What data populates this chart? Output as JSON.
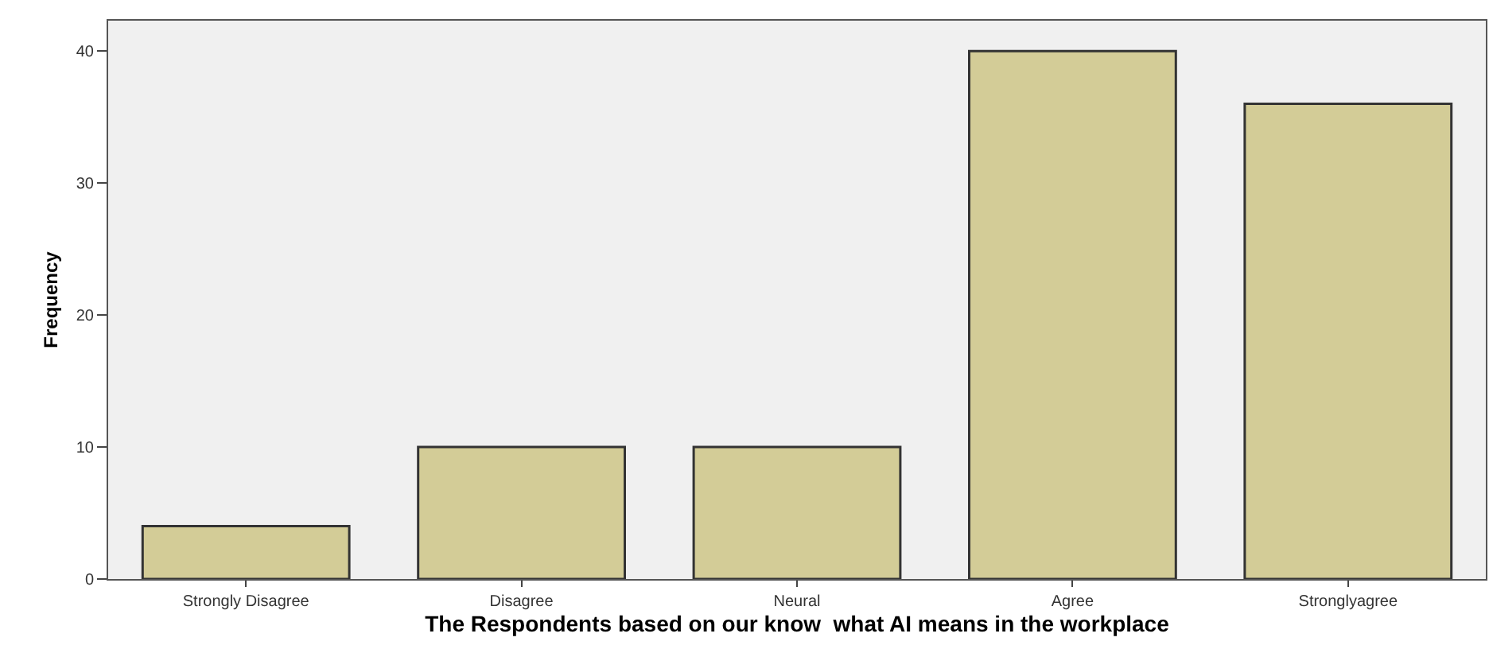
{
  "chart_data": {
    "type": "bar",
    "xlabel": "The Respondents based on our know  what AI means in the workplace",
    "ylabel": "Frequency",
    "categories": [
      "Strongly Disagree",
      "Disagree",
      "Neural",
      "Agree",
      "Stronglyagree"
    ],
    "values": [
      4,
      10,
      10,
      40,
      36
    ],
    "color": "#d3cc97",
    "ylim": [
      0,
      42.3
    ],
    "yticks": [
      0,
      10,
      20,
      30,
      40
    ],
    "grid": false,
    "legend": false
  }
}
